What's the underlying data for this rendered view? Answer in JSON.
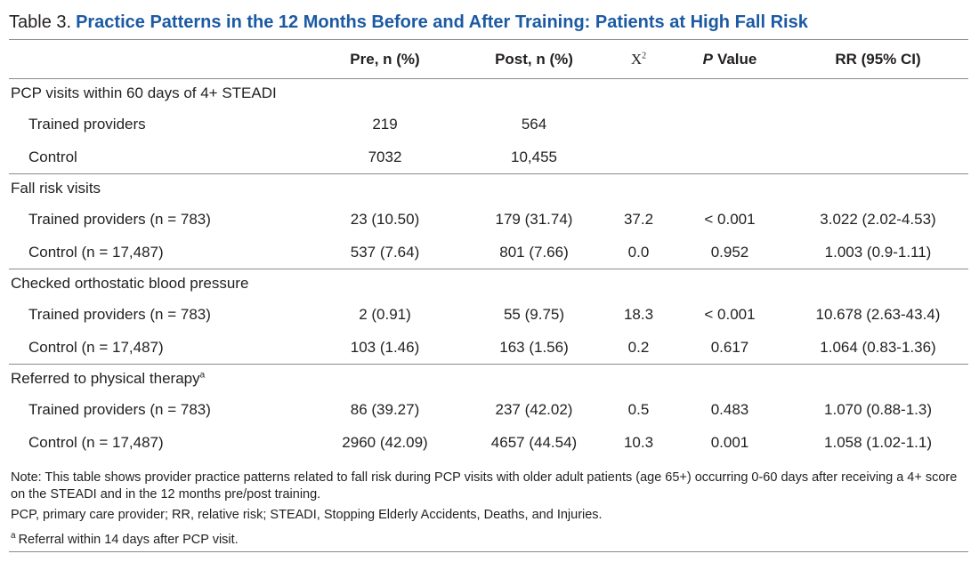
{
  "table": {
    "label": "Table 3.",
    "title": "Practice Patterns in the 12 Months Before and After Training: Patients at High Fall Risk",
    "header": {
      "pre": "Pre, n (%)",
      "post": "Post, n (%)",
      "chi": {
        "text": "X",
        "sup": "2"
      },
      "p": {
        "italic": "P",
        "text": "Value"
      },
      "rr": "RR (95% CI)"
    },
    "sections": [
      {
        "label": "PCP visits within 60 days of 4+ STEADI",
        "rows": [
          {
            "label": "Trained providers",
            "cells": [
              "219",
              "564"
            ]
          },
          {
            "label": "Control",
            "cells": [
              "7032",
              "10,455"
            ]
          }
        ]
      },
      {
        "label": "Fall risk visits",
        "rows": [
          {
            "label": "Trained providers (n = 783)",
            "cells": [
              "23 (10.50)",
              "179 (31.74)",
              "37.2",
              "< 0.001",
              "3.022 (2.02-4.53)"
            ]
          },
          {
            "label": "Control (n = 17,487)",
            "cells": [
              "537 (7.64)",
              "801 (7.66)",
              "0.0",
              "0.952",
              "1.003 (0.9-1.11)"
            ]
          }
        ]
      },
      {
        "label": "Checked orthostatic blood pressure",
        "rows": [
          {
            "label": "Trained providers (n = 783)",
            "cells": [
              "2 (0.91)",
              "55 (9.75)",
              "18.3",
              "< 0.001",
              "10.678 (2.63-43.4)"
            ]
          },
          {
            "label": "Control (n = 17,487)",
            "cells": [
              "103 (1.46)",
              "163 (1.56)",
              "0.2",
              "0.617",
              "1.064 (0.83-1.36)"
            ]
          }
        ]
      },
      {
        "label": "Referred to physical therapy",
        "sup": "a",
        "rows": [
          {
            "label": "Trained providers (n = 783)",
            "cells": [
              "86 (39.27)",
              "237 (42.02)",
              "0.5",
              "0.483",
              "1.070 (0.88-1.3)"
            ]
          },
          {
            "label": "Control (n = 17,487)",
            "cells": [
              "2960 (42.09)",
              "4657 (44.54)",
              "10.3",
              "0.001",
              "1.058 (1.02-1.1)"
            ]
          }
        ]
      }
    ],
    "notes": [
      {
        "text": "Note: This table shows provider practice patterns related to fall risk during PCP visits with older adult patients (age 65+) occurring 0-60 days after receiving a 4+ score on the STEADI and in the 12 months pre/post training."
      },
      {
        "text": "PCP, primary care provider; RR, relative risk; STEADI, Stopping Elderly Accidents, Deaths, and Injuries."
      },
      {
        "sup": "a",
        "text": "Referral within 14 days after PCP visit."
      }
    ]
  }
}
